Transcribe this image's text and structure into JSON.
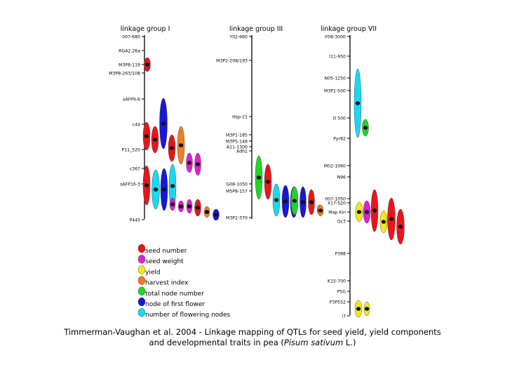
{
  "groups": [
    {
      "title": "linkage group I",
      "markers": [
        "007-680",
        "RGA2.26a",
        "M3P8-119",
        "M3P8-263/108",
        "sAFP9-6",
        "c44",
        "P11_520",
        "c367",
        "sAFP16-3",
        "P445"
      ],
      "qtls": [
        {
          "trait": "seed_number",
          "span": [
            1,
            1
          ]
        },
        {
          "trait": "seed_number",
          "span": [
            4,
            5
          ]
        },
        {
          "trait": "seed_number",
          "span": [
            4,
            5
          ]
        },
        {
          "trait": "node_first_flower",
          "span": [
            3,
            5
          ]
        },
        {
          "trait": "seed_number",
          "span": [
            5,
            6
          ]
        },
        {
          "trait": "harvest_index",
          "span": [
            5,
            6
          ]
        },
        {
          "trait": "seed_weight",
          "span": [
            6,
            6
          ]
        },
        {
          "trait": "seed_weight",
          "span": [
            6,
            6
          ]
        },
        {
          "trait": "seed_number",
          "span": [
            7,
            9
          ]
        },
        {
          "trait": "flowering_nodes",
          "span": [
            7,
            9
          ]
        },
        {
          "trait": "node_first_flower",
          "span": [
            7,
            9
          ]
        },
        {
          "trait": "flowering_nodes",
          "span": [
            7,
            9
          ]
        },
        {
          "trait": "seed_weight",
          "span": [
            9,
            9
          ]
        },
        {
          "trait": "seed_weight",
          "span": [
            9,
            9
          ]
        },
        {
          "trait": "seed_weight",
          "span": [
            9,
            9
          ]
        },
        {
          "trait": "seed_number",
          "span": [
            9,
            9
          ]
        },
        {
          "trait": "harvest_index",
          "span": [
            9,
            9
          ]
        },
        {
          "trait": "node_first_flower",
          "span": [
            9,
            9
          ]
        }
      ]
    },
    {
      "title": "linkage group III",
      "markers": [
        "Y02-660",
        "M3P2-208/193",
        "Hsp-21",
        "M3P1-185",
        "M3P5-148",
        "A11-1300",
        "Adh1",
        "G08-1050",
        "M5P8-157",
        "M3P2-370"
      ],
      "qtls": [
        {
          "trait": "total_node_number",
          "span": [
            6,
            7
          ]
        },
        {
          "trait": "seed_number",
          "span": [
            7,
            8
          ]
        },
        {
          "trait": "flowering_nodes",
          "span": [
            8,
            9
          ]
        },
        {
          "trait": "node_first_flower",
          "span": [
            8,
            9
          ]
        },
        {
          "trait": "node_first_flower",
          "span": [
            8,
            9
          ]
        },
        {
          "trait": "node_first_flower",
          "span": [
            8,
            9
          ]
        },
        {
          "trait": "total_node_number",
          "span": [
            8,
            9
          ]
        },
        {
          "trait": "seed_number",
          "span": [
            8,
            9
          ]
        },
        {
          "trait": "harvest_index",
          "span": [
            9,
            9
          ]
        },
        {
          "trait": "harvest_index",
          "span": [
            9,
            9
          ]
        }
      ]
    },
    {
      "title": "linkage group VII",
      "markers": [
        "F08-3000",
        "I11-950",
        "N05-1250",
        "M3P1-500",
        "O 500",
        "Pyr82",
        "M02-1060",
        "N96",
        "007-1050",
        "X17-520",
        "Map Kin",
        "Oc3",
        "P388",
        "K15-700",
        "P5G",
        "P3P552",
        "i7"
      ],
      "qtls": [
        {
          "trait": "flowering_nodes",
          "span": [
            2,
            5
          ]
        },
        {
          "trait": "total_node_number",
          "span": [
            5,
            5
          ]
        },
        {
          "trait": "yield",
          "span": [
            10,
            10
          ]
        },
        {
          "trait": "seed_weight",
          "span": [
            10,
            11
          ]
        },
        {
          "trait": "seed_number",
          "span": [
            9,
            11
          ]
        },
        {
          "trait": "yield",
          "span": [
            11,
            11
          ]
        },
        {
          "trait": "seed_number",
          "span": [
            11,
            11
          ]
        },
        {
          "trait": "seed_number",
          "span": [
            11,
            11
          ]
        },
        {
          "trait": "yield",
          "span": [
            15,
            15
          ]
        },
        {
          "trait": "yield",
          "span": [
            15,
            15
          ]
        }
      ]
    }
  ],
  "legend": [
    {
      "trait": "seed_number",
      "label": "seed number",
      "color": "#e8161b"
    },
    {
      "trait": "seed_weight",
      "label": "seed weight",
      "color": "#e020cc"
    },
    {
      "trait": "yield",
      "label": "yield",
      "color": "#f3ea12"
    },
    {
      "trait": "harvest_index",
      "label": "harvest index",
      "color": "#f07e20"
    },
    {
      "trait": "total_node_number",
      "label": "total node number",
      "color": "#22d42a"
    },
    {
      "trait": "node_first_flower",
      "label": "node of first flower",
      "color": "#1818d8"
    },
    {
      "trait": "flowering_nodes",
      "label": "number of flowering nodes",
      "color": "#19d9f0"
    }
  ],
  "caption": {
    "line1": "Timmerman-Vaughan et al. 2004 - Linkage mapping of QTLs for seed yield, yield components",
    "line2_prefix": "and developmental traits in pea (",
    "line2_species": "Pisum sativum",
    "line2_suffix": " L.)"
  }
}
